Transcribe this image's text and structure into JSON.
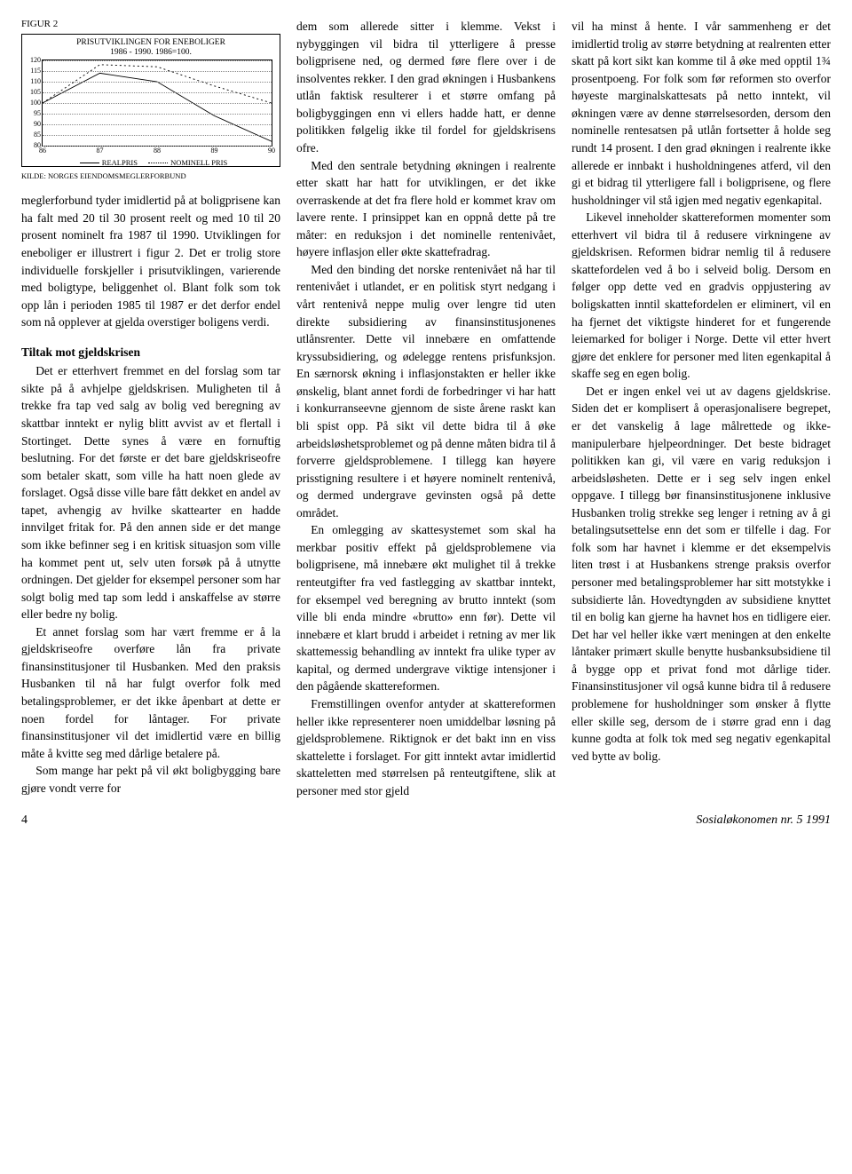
{
  "figure": {
    "label": "FIGUR 2",
    "title_line1": "PRISUTVIKLINGEN FOR ENEBOLIGER",
    "title_line2": "1986 - 1990. 1986=100.",
    "y_ticks": [
      80,
      85,
      90,
      95,
      100,
      105,
      110,
      115,
      120
    ],
    "x_ticks": [
      86,
      87,
      88,
      89,
      90
    ],
    "series": {
      "realpris": {
        "label": "REALPRIS",
        "values": [
          100,
          114,
          110,
          94,
          82
        ],
        "stroke": "#000000",
        "dash": ""
      },
      "nominell": {
        "label": "NOMINELL PRIS",
        "values": [
          100,
          118,
          117,
          108,
          100
        ],
        "stroke": "#000000",
        "dash": "2,3"
      }
    },
    "xlim": [
      86,
      90
    ],
    "ylim": [
      80,
      120
    ],
    "grid_color": "#888888",
    "source": "KILDE: NORGES EIENDOMSMEGLERFORBUND"
  },
  "col1": {
    "p1": "meglerforbund tyder imidlertid på at boligprisene kan ha falt med 20 til 30 prosent reelt og med 10 til 20 prosent nominelt fra 1987 til 1990. Utviklingen for eneboliger er illustrert i figur 2. Det er trolig store individuelle forskjeller i prisutviklingen, varierende med boligtype, beliggenhet ol. Blant folk som tok opp lån i perioden 1985 til 1987 er det derfor endel som nå opplever at gjelda overstiger boligens verdi.",
    "subhead": "Tiltak mot gjeldskrisen",
    "p2": "Det er etterhvert fremmet en del forslag som tar sikte på å avhjelpe gjeldskrisen. Muligheten til å trekke fra tap ved salg av bolig ved beregning av skattbar inntekt er nylig blitt avvist av et flertall i Stortinget. Dette synes å være en fornuftig beslutning. For det første er det bare gjeldskriseofre som betaler skatt, som ville ha hatt noen glede av forslaget. Også disse ville bare fått dekket en andel av tapet, avhengig av hvilke skattearter en hadde innvilget fritak for. På den annen side er det mange som ikke befinner seg i en kritisk situasjon som ville ha kommet pent ut, selv uten forsøk på å utnytte ordningen. Det gjelder for eksempel personer som har solgt bolig med tap som ledd i anskaffelse av større eller bedre ny bolig.",
    "p3": "Et annet forslag som har vært fremme er å la gjeldskriseofre overføre lån fra private finansinstitusjoner til Husbanken. Med den praksis Husbanken til nå har fulgt overfor folk med betalingsproblemer, er det ikke åpenbart at dette er noen fordel for låntager. For private finansinstitusjoner vil det imidlertid være en billig måte å kvitte seg med dårlige betalere på.",
    "p4": "Som mange har pekt på vil økt boligbygging bare gjøre vondt verre for"
  },
  "col2": {
    "p1": "dem som allerede sitter i klemme. Vekst i nybyggingen vil bidra til ytterligere å presse boligprisene ned, og dermed føre flere over i de insolventes rekker. I den grad økningen i Husbankens utlån faktisk resulterer i et større omfang på boligbyggingen enn vi ellers hadde hatt, er denne politikken følgelig ikke til fordel for gjeldskrisens ofre.",
    "p2": "Med den sentrale betydning økningen i realrente etter skatt har hatt for utviklingen, er det ikke overraskende at det fra flere hold er kommet krav om lavere rente. I prinsippet kan en oppnå dette på tre måter: en reduksjon i det nominelle rentenivået, høyere inflasjon eller økte skattefradrag.",
    "p3": "Med den binding det norske rentenivået nå har til rentenivået i utlandet, er en politisk styrt nedgang i vårt rentenivå neppe mulig over lengre tid uten direkte subsidiering av finansinstitusjonenes utlånsrenter. Dette vil innebære en omfattende kryssubsidiering, og ødelegge rentens prisfunksjon. En særnorsk økning i inflasjonstakten er heller ikke ønskelig, blant annet fordi de forbedringer vi har hatt i konkurranseevne gjennom de siste årene raskt kan bli spist opp. På sikt vil dette bidra til å øke arbeidsløshetsproblemet og på denne måten bidra til å forverre gjeldsproblemene. I tillegg kan høyere prisstigning resultere i et høyere nominelt rentenivå, og dermed undergrave gevinsten også på dette området.",
    "p4": "En omlegging av skattesystemet som skal ha merkbar positiv effekt på gjeldsproblemene via boligprisene, må innebære økt mulighet til å trekke renteutgifter fra ved fastlegging av skattbar inntekt, for eksempel ved beregning av brutto inntekt (som ville bli enda mindre «brutto» enn før). Dette vil innebære et klart brudd i arbeidet i retning av mer lik skattemessig behandling av inntekt fra ulike typer av kapital, og dermed undergrave viktige intensjoner i den pågående skattereformen.",
    "p5": "Fremstillingen ovenfor antyder at skattereformen heller ikke representerer noen umiddelbar løsning på gjeldsproblemene. Riktignok er det bakt inn en viss skattelette i forslaget. For gitt inntekt avtar imidlertid skatteletten med størrelsen på renteutgiftene, slik at personer med stor gjeld"
  },
  "col3": {
    "p1": "vil ha minst å hente. I vår sammenheng er det imidlertid trolig av større betydning at realrenten etter skatt på kort sikt kan komme til å øke med opptil 1¾ prosentpoeng. For folk som før reformen sto overfor høyeste marginalskattesats på netto inntekt, vil økningen være av denne størrelsesorden, dersom den nominelle rentesatsen på utlån fortsetter å holde seg rundt 14 prosent. I den grad økningen i realrente ikke allerede er innbakt i husholdningenes atferd, vil den gi et bidrag til ytterligere fall i boligprisene, og flere husholdninger vil stå igjen med negativ egenkapital.",
    "p2": "Likevel inneholder skattereformen momenter som etterhvert vil bidra til å redusere virkningene av gjeldskrisen. Reformen bidrar nemlig til å redusere skattefordelen ved å bo i selveid bolig. Dersom en følger opp dette ved en gradvis oppjustering av boligskatten inntil skattefordelen er eliminert, vil en ha fjernet det viktigste hinderet for et fungerende leiemarked for boliger i Norge. Dette vil etter hvert gjøre det enklere for personer med liten egenkapital å skaffe seg en egen bolig.",
    "p3": "Det er ingen enkel vei ut av dagens gjeldskrise. Siden det er komplisert å operasjonalisere begrepet, er det vanskelig å lage målrettede og ikke-manipulerbare hjelpeordninger. Det beste bidraget politikken kan gi, vil være en varig reduksjon i arbeidsløsheten. Dette er i seg selv ingen enkel oppgave. I tillegg bør finansinstitusjonene inklusive Husbanken trolig strekke seg lenger i retning av å gi betalingsutsettelse enn det som er tilfelle i dag. For folk som har havnet i klemme er det eksempelvis liten trøst i at Husbankens strenge praksis overfor personer med betalingsproblemer har sitt motstykke i subsidierte lån. Hovedtyngden av subsidiene knyttet til en bolig kan gjerne ha havnet hos en tidligere eier. Det har vel heller ikke vært meningen at den enkelte låntaker primært skulle benytte husbanksubsidiene til å bygge opp et privat fond mot dårlige tider. Finansinstitusjoner vil også kunne bidra til å redusere problemene for husholdninger som ønsker å flytte eller skille seg, dersom de i større grad enn i dag kunne godta at folk tok med seg negativ egenkapital ved bytte av bolig."
  },
  "footer": {
    "page": "4",
    "journal": "Sosialøkonomen nr. 5 1991"
  }
}
